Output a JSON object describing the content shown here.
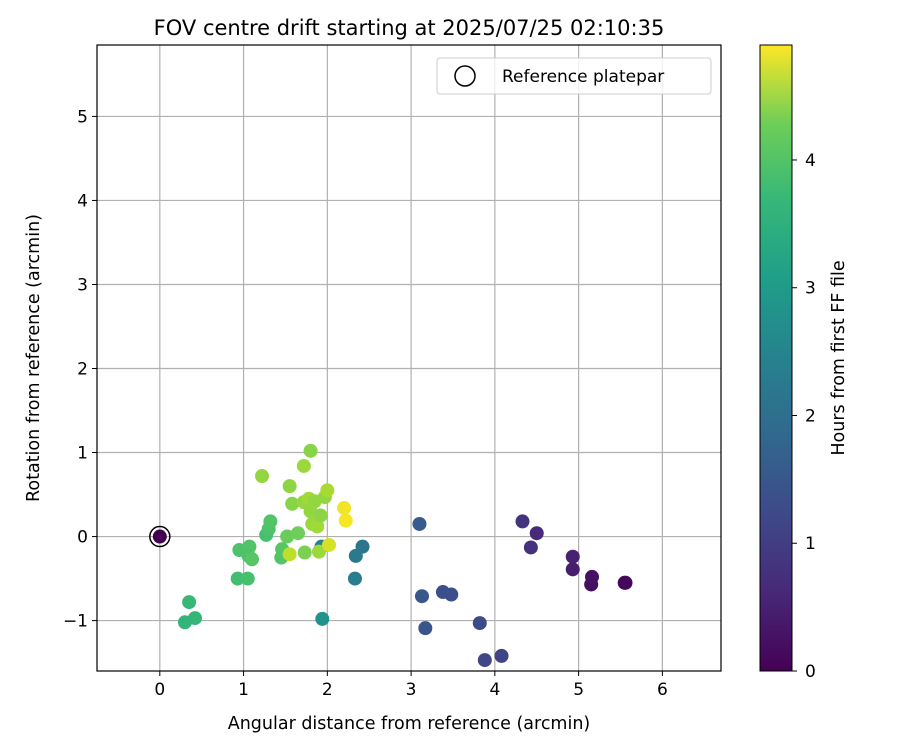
{
  "chart_data": {
    "type": "scatter",
    "title": "FOV centre drift starting at 2025/07/25 02:10:35",
    "xlabel": "Angular distance from reference (arcmin)",
    "ylabel": "Rotation from reference (arcmin)",
    "xlim": [
      -0.75,
      6.7
    ],
    "ylim": [
      -1.6,
      5.85
    ],
    "xticks": [
      0,
      1,
      2,
      3,
      4,
      5,
      6
    ],
    "xtick_labels": [
      "0",
      "1",
      "2",
      "3",
      "4",
      "5",
      "6"
    ],
    "yticks": [
      -1,
      0,
      1,
      2,
      3,
      4,
      5
    ],
    "ytick_labels": [
      "−1",
      "0",
      "1",
      "2",
      "3",
      "4",
      "5"
    ],
    "grid": true,
    "legend": {
      "position": "top-right",
      "entries": [
        "Reference platepar"
      ]
    },
    "reference_point": {
      "name": "Reference platepar",
      "x": 0,
      "y": 0,
      "marker": "open-circle"
    },
    "colorbar": {
      "label": "Hours from first FF file",
      "colormap": "viridis",
      "range": [
        0,
        4.9
      ],
      "ticks": [
        0,
        1,
        2,
        3,
        4
      ],
      "tick_labels": [
        "0",
        "1",
        "2",
        "3",
        "4"
      ]
    },
    "series": [
      {
        "points": [
          {
            "x": 0.0,
            "y": 0.0,
            "c": 0.0
          },
          {
            "x": 5.55,
            "y": -0.55,
            "c": 0.05
          },
          {
            "x": 5.56,
            "y": -0.55,
            "c": 0.08
          },
          {
            "x": 5.15,
            "y": -0.57,
            "c": 0.2
          },
          {
            "x": 5.16,
            "y": -0.48,
            "c": 0.22
          },
          {
            "x": 4.93,
            "y": -0.39,
            "c": 0.4
          },
          {
            "x": 4.93,
            "y": -0.24,
            "c": 0.45
          },
          {
            "x": 4.5,
            "y": 0.04,
            "c": 0.6
          },
          {
            "x": 4.43,
            "y": -0.13,
            "c": 0.7
          },
          {
            "x": 4.33,
            "y": 0.18,
            "c": 0.75
          },
          {
            "x": 4.08,
            "y": -1.42,
            "c": 1.0
          },
          {
            "x": 3.88,
            "y": -1.47,
            "c": 1.05
          },
          {
            "x": 3.82,
            "y": -1.03,
            "c": 1.12
          },
          {
            "x": 3.48,
            "y": -0.69,
            "c": 1.2
          },
          {
            "x": 3.38,
            "y": -0.66,
            "c": 1.22
          },
          {
            "x": 3.17,
            "y": -1.09,
            "c": 1.3
          },
          {
            "x": 3.13,
            "y": -0.71,
            "c": 1.35
          },
          {
            "x": 3.1,
            "y": 0.15,
            "c": 1.4
          },
          {
            "x": 2.42,
            "y": -0.12,
            "c": 1.9
          },
          {
            "x": 2.34,
            "y": -0.23,
            "c": 2.0
          },
          {
            "x": 2.33,
            "y": -0.5,
            "c": 2.1
          },
          {
            "x": 1.93,
            "y": -0.12,
            "c": 2.2
          },
          {
            "x": 1.94,
            "y": -0.98,
            "c": 2.5
          },
          {
            "x": 0.35,
            "y": -0.78,
            "c": 3.3
          },
          {
            "x": 0.42,
            "y": -0.97,
            "c": 3.25
          },
          {
            "x": 0.3,
            "y": -1.02,
            "c": 3.2
          },
          {
            "x": 0.93,
            "y": -0.5,
            "c": 3.4
          },
          {
            "x": 1.05,
            "y": -0.5,
            "c": 3.45
          },
          {
            "x": 0.95,
            "y": -0.16,
            "c": 3.5
          },
          {
            "x": 1.07,
            "y": -0.12,
            "c": 3.55
          },
          {
            "x": 1.06,
            "y": -0.23,
            "c": 3.5
          },
          {
            "x": 1.1,
            "y": -0.27,
            "c": 3.6
          },
          {
            "x": 1.27,
            "y": 0.02,
            "c": 3.45
          },
          {
            "x": 1.3,
            "y": 0.09,
            "c": 3.5
          },
          {
            "x": 1.32,
            "y": 0.18,
            "c": 3.55
          },
          {
            "x": 1.46,
            "y": -0.15,
            "c": 3.6
          },
          {
            "x": 1.45,
            "y": -0.25,
            "c": 3.55
          },
          {
            "x": 1.52,
            "y": 0.0,
            "c": 3.75
          },
          {
            "x": 1.65,
            "y": 0.04,
            "c": 3.8
          },
          {
            "x": 1.73,
            "y": -0.19,
            "c": 3.9
          },
          {
            "x": 1.55,
            "y": -0.21,
            "c": 4.4
          },
          {
            "x": 1.58,
            "y": 0.39,
            "c": 4.0
          },
          {
            "x": 1.55,
            "y": 0.6,
            "c": 4.05
          },
          {
            "x": 1.22,
            "y": 0.72,
            "c": 4.1
          },
          {
            "x": 1.72,
            "y": 0.84,
            "c": 4.15
          },
          {
            "x": 1.8,
            "y": 1.02,
            "c": 4.0
          },
          {
            "x": 1.72,
            "y": 0.41,
            "c": 4.1
          },
          {
            "x": 1.78,
            "y": 0.45,
            "c": 4.2
          },
          {
            "x": 1.8,
            "y": 0.3,
            "c": 4.1
          },
          {
            "x": 1.85,
            "y": 0.42,
            "c": 4.1
          },
          {
            "x": 1.82,
            "y": 0.15,
            "c": 4.15
          },
          {
            "x": 1.88,
            "y": 0.12,
            "c": 4.2
          },
          {
            "x": 1.92,
            "y": 0.25,
            "c": 4.05
          },
          {
            "x": 1.9,
            "y": -0.18,
            "c": 4.15
          },
          {
            "x": 1.97,
            "y": 0.47,
            "c": 4.1
          },
          {
            "x": 2.0,
            "y": 0.55,
            "c": 4.25
          },
          {
            "x": 2.02,
            "y": -0.1,
            "c": 4.6
          },
          {
            "x": 2.2,
            "y": 0.34,
            "c": 4.8
          },
          {
            "x": 2.22,
            "y": 0.19,
            "c": 4.85
          }
        ]
      }
    ]
  }
}
